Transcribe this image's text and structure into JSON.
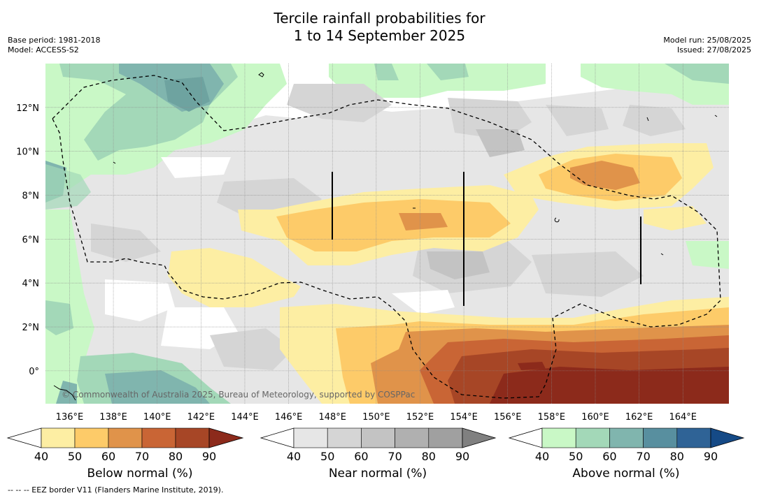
{
  "title": {
    "line1": "Tercile rainfall probabilities for",
    "line2": "1 to 14 September 2025"
  },
  "meta": {
    "base_period": "Base period: 1981-2018",
    "model": "Model: ACCESS-S2",
    "model_run": "Model run: 25/08/2025",
    "issued": "Issued: 27/08/2025"
  },
  "map": {
    "lon_range": [
      134.9,
      166.1
    ],
    "lat_range": [
      -1.5,
      14.0
    ],
    "lon_ticks": [
      "136°E",
      "138°E",
      "140°E",
      "142°E",
      "144°E",
      "146°E",
      "148°E",
      "150°E",
      "152°E",
      "154°E",
      "156°E",
      "158°E",
      "160°E",
      "162°E",
      "164°E"
    ],
    "lon_values": [
      136,
      138,
      140,
      142,
      144,
      146,
      148,
      150,
      152,
      154,
      156,
      158,
      160,
      162,
      164
    ],
    "lat_ticks": [
      "12°N",
      "10°N",
      "8°N",
      "6°N",
      "4°N",
      "2°N",
      "0°"
    ],
    "lat_values": [
      12,
      10,
      8,
      6,
      4,
      2,
      0
    ],
    "grid": true,
    "copyright": "© Commonwealth of Australia 2025, Bureau of Meteorology, supported by COSPPac"
  },
  "colorbars": [
    {
      "name": "below",
      "label": "Below normal (%)",
      "ticks": [
        "40",
        "50",
        "60",
        "70",
        "80",
        "90"
      ],
      "colors": [
        "#ffffff",
        "#fdeea3",
        "#fdcb69",
        "#e0934a",
        "#c96535",
        "#a74626",
        "#8c2a1b"
      ]
    },
    {
      "name": "near",
      "label": "Near normal (%)",
      "ticks": [
        "40",
        "50",
        "60",
        "70",
        "80",
        "90"
      ],
      "colors": [
        "#ffffff",
        "#e6e6e6",
        "#d5d5d5",
        "#c3c3c3",
        "#b0b0b0",
        "#a0a0a0",
        "#808080"
      ]
    },
    {
      "name": "above",
      "label": "Above normal (%)",
      "ticks": [
        "40",
        "50",
        "60",
        "70",
        "80",
        "90"
      ],
      "colors": [
        "#ffffff",
        "#c9f8c6",
        "#a3d8b8",
        "#80b5ae",
        "#588f9f",
        "#2f6396",
        "#154a86"
      ]
    }
  ],
  "footnote": "--  --  -- EEZ border V11 (Flanders Marine Institute, 2019)."
}
